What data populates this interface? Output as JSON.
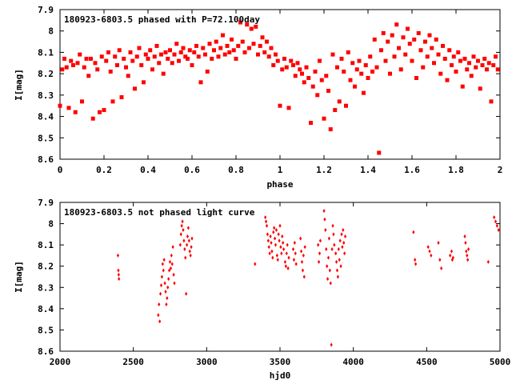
{
  "colors": {
    "points": "#ff0000",
    "frame": "#000000",
    "background": "#ffffff"
  },
  "chart_data": [
    {
      "type": "scatter",
      "title": "180923-6803.5 phased with P=72.100day",
      "xlabel": "phase",
      "ylabel": "I[mag]",
      "xlim": [
        0,
        2
      ],
      "ylim": [
        8.6,
        7.9
      ],
      "y_inverted": true,
      "grid": false,
      "legend": "none",
      "marker": "filled-square-star",
      "xticks": [
        0,
        0.2,
        0.4,
        0.6,
        0.8,
        1,
        1.2,
        1.4,
        1.6,
        1.8,
        2
      ],
      "xtick_labels": [
        "0",
        "0.2",
        "0.4",
        "0.6",
        "0.8",
        "1",
        "1.2",
        "1.4",
        "1.6",
        "1.8",
        "2"
      ],
      "yticks": [
        7.9,
        8,
        8.1,
        8.2,
        8.3,
        8.4,
        8.5,
        8.6
      ],
      "ytick_labels": [
        "7.9",
        "8",
        "8.1",
        "8.2",
        "8.3",
        "8.4",
        "8.5",
        "8.6"
      ],
      "points": [
        [
          0.0,
          8.35
        ],
        [
          0.01,
          8.18
        ],
        [
          0.02,
          8.13
        ],
        [
          0.03,
          8.17
        ],
        [
          0.04,
          8.36
        ],
        [
          0.05,
          8.14
        ],
        [
          0.06,
          8.16
        ],
        [
          0.07,
          8.38
        ],
        [
          0.08,
          8.15
        ],
        [
          0.09,
          8.11
        ],
        [
          0.1,
          8.33
        ],
        [
          0.11,
          8.17
        ],
        [
          0.12,
          8.13
        ],
        [
          0.13,
          8.21
        ],
        [
          0.14,
          8.13
        ],
        [
          0.15,
          8.41
        ],
        [
          0.16,
          8.15
        ],
        [
          0.17,
          8.18
        ],
        [
          0.18,
          8.38
        ],
        [
          0.19,
          8.12
        ],
        [
          0.2,
          8.37
        ],
        [
          0.21,
          8.14
        ],
        [
          0.22,
          8.1
        ],
        [
          0.23,
          8.19
        ],
        [
          0.24,
          8.33
        ],
        [
          0.25,
          8.12
        ],
        [
          0.26,
          8.16
        ],
        [
          0.27,
          8.09
        ],
        [
          0.28,
          8.31
        ],
        [
          0.29,
          8.13
        ],
        [
          0.3,
          8.17
        ],
        [
          0.31,
          8.21
        ],
        [
          0.32,
          8.1
        ],
        [
          0.33,
          8.14
        ],
        [
          0.34,
          8.27
        ],
        [
          0.35,
          8.12
        ],
        [
          0.36,
          8.08
        ],
        [
          0.37,
          8.16
        ],
        [
          0.38,
          8.24
        ],
        [
          0.39,
          8.11
        ],
        [
          0.4,
          8.13
        ],
        [
          0.41,
          8.09
        ],
        [
          0.42,
          8.18
        ],
        [
          0.43,
          8.12
        ],
        [
          0.44,
          8.07
        ],
        [
          0.45,
          8.15
        ],
        [
          0.46,
          8.11
        ],
        [
          0.47,
          8.2
        ],
        [
          0.48,
          8.1
        ],
        [
          0.49,
          8.13
        ],
        [
          0.5,
          8.09
        ],
        [
          0.51,
          8.15
        ],
        [
          0.52,
          8.11
        ],
        [
          0.53,
          8.06
        ],
        [
          0.54,
          8.14
        ],
        [
          0.55,
          8.1
        ],
        [
          0.56,
          8.08
        ],
        [
          0.57,
          8.12
        ],
        [
          0.58,
          8.13
        ],
        [
          0.59,
          8.09
        ],
        [
          0.6,
          8.16
        ],
        [
          0.61,
          8.1
        ],
        [
          0.62,
          8.07
        ],
        [
          0.63,
          8.12
        ],
        [
          0.64,
          8.24
        ],
        [
          0.65,
          8.08
        ],
        [
          0.66,
          8.11
        ],
        [
          0.67,
          8.19
        ],
        [
          0.68,
          8.06
        ],
        [
          0.69,
          8.13
        ],
        [
          0.7,
          8.09
        ],
        [
          0.71,
          8.05
        ],
        [
          0.72,
          8.12
        ],
        [
          0.73,
          8.08
        ],
        [
          0.74,
          8.02
        ],
        [
          0.75,
          8.11
        ],
        [
          0.76,
          8.07
        ],
        [
          0.77,
          8.1
        ],
        [
          0.78,
          8.04
        ],
        [
          0.79,
          8.09
        ],
        [
          0.8,
          8.13
        ],
        [
          0.81,
          8.07
        ],
        [
          0.82,
          7.96
        ],
        [
          0.83,
          8.05
        ],
        [
          0.84,
          8.1
        ],
        [
          0.85,
          7.97
        ],
        [
          0.86,
          8.08
        ],
        [
          0.87,
          7.99
        ],
        [
          0.88,
          8.06
        ],
        [
          0.89,
          7.98
        ],
        [
          0.9,
          8.11
        ],
        [
          0.91,
          8.07
        ],
        [
          0.92,
          8.03
        ],
        [
          0.93,
          8.1
        ],
        [
          0.94,
          8.05
        ],
        [
          0.95,
          8.12
        ],
        [
          0.96,
          8.08
        ],
        [
          0.97,
          8.16
        ],
        [
          0.98,
          8.11
        ],
        [
          0.99,
          8.14
        ],
        [
          1.0,
          8.35
        ],
        [
          1.01,
          8.18
        ],
        [
          1.02,
          8.13
        ],
        [
          1.03,
          8.17
        ],
        [
          1.04,
          8.36
        ],
        [
          1.05,
          8.14
        ],
        [
          1.06,
          8.16
        ],
        [
          1.07,
          8.21
        ],
        [
          1.08,
          8.15
        ],
        [
          1.09,
          8.18
        ],
        [
          1.1,
          8.2
        ],
        [
          1.11,
          8.24
        ],
        [
          1.12,
          8.17
        ],
        [
          1.13,
          8.22
        ],
        [
          1.14,
          8.43
        ],
        [
          1.15,
          8.26
        ],
        [
          1.16,
          8.19
        ],
        [
          1.17,
          8.3
        ],
        [
          1.18,
          8.14
        ],
        [
          1.19,
          8.23
        ],
        [
          1.2,
          8.41
        ],
        [
          1.21,
          8.21
        ],
        [
          1.22,
          8.28
        ],
        [
          1.23,
          8.46
        ],
        [
          1.24,
          8.11
        ],
        [
          1.25,
          8.37
        ],
        [
          1.26,
          8.17
        ],
        [
          1.27,
          8.33
        ],
        [
          1.28,
          8.13
        ],
        [
          1.29,
          8.19
        ],
        [
          1.3,
          8.35
        ],
        [
          1.31,
          8.1
        ],
        [
          1.32,
          8.23
        ],
        [
          1.33,
          8.15
        ],
        [
          1.34,
          8.26
        ],
        [
          1.35,
          8.18
        ],
        [
          1.36,
          8.14
        ],
        [
          1.37,
          8.2
        ],
        [
          1.38,
          8.29
        ],
        [
          1.39,
          8.16
        ],
        [
          1.4,
          8.22
        ],
        [
          1.41,
          8.12
        ],
        [
          1.42,
          8.19
        ],
        [
          1.43,
          8.04
        ],
        [
          1.44,
          8.17
        ],
        [
          1.45,
          8.57
        ],
        [
          1.46,
          8.09
        ],
        [
          1.47,
          8.01
        ],
        [
          1.48,
          8.14
        ],
        [
          1.49,
          8.05
        ],
        [
          1.5,
          8.2
        ],
        [
          1.51,
          8.02
        ],
        [
          1.52,
          8.12
        ],
        [
          1.53,
          7.97
        ],
        [
          1.54,
          8.08
        ],
        [
          1.55,
          8.18
        ],
        [
          1.56,
          8.03
        ],
        [
          1.57,
          8.11
        ],
        [
          1.58,
          7.99
        ],
        [
          1.59,
          8.06
        ],
        [
          1.6,
          8.14
        ],
        [
          1.61,
          8.04
        ],
        [
          1.62,
          8.22
        ],
        [
          1.63,
          8.01
        ],
        [
          1.64,
          8.09
        ],
        [
          1.65,
          8.17
        ],
        [
          1.66,
          8.05
        ],
        [
          1.67,
          8.12
        ],
        [
          1.68,
          8.02
        ],
        [
          1.69,
          8.08
        ],
        [
          1.7,
          8.15
        ],
        [
          1.71,
          8.04
        ],
        [
          1.72,
          8.11
        ],
        [
          1.73,
          8.2
        ],
        [
          1.74,
          8.07
        ],
        [
          1.75,
          8.13
        ],
        [
          1.76,
          8.23
        ],
        [
          1.77,
          8.09
        ],
        [
          1.78,
          8.16
        ],
        [
          1.79,
          8.12
        ],
        [
          1.8,
          8.19
        ],
        [
          1.81,
          8.1
        ],
        [
          1.82,
          8.14
        ],
        [
          1.83,
          8.26
        ],
        [
          1.84,
          8.13
        ],
        [
          1.85,
          8.18
        ],
        [
          1.86,
          8.15
        ],
        [
          1.87,
          8.21
        ],
        [
          1.88,
          8.12
        ],
        [
          1.89,
          8.17
        ],
        [
          1.9,
          8.14
        ],
        [
          1.91,
          8.27
        ],
        [
          1.92,
          8.16
        ],
        [
          1.93,
          8.13
        ],
        [
          1.94,
          8.18
        ],
        [
          1.95,
          8.15
        ],
        [
          1.96,
          8.33
        ],
        [
          1.97,
          8.16
        ],
        [
          1.98,
          8.12
        ],
        [
          1.99,
          8.18
        ]
      ]
    },
    {
      "type": "scatter",
      "title": "180923-6803.5 not phased light curve",
      "xlabel": "hjd0",
      "ylabel": "I[mag]",
      "xlim": [
        2000,
        5000
      ],
      "ylim": [
        8.6,
        7.9
      ],
      "y_inverted": true,
      "grid": false,
      "legend": "none",
      "marker": "small-diamond",
      "xticks": [
        2000,
        2500,
        3000,
        3500,
        4000,
        4500,
        5000
      ],
      "xtick_labels": [
        "2000",
        "2500",
        "3000",
        "3500",
        "4000",
        "4500",
        "5000"
      ],
      "yticks": [
        7.9,
        8,
        8.1,
        8.2,
        8.3,
        8.4,
        8.5,
        8.6
      ],
      "ytick_labels": [
        "7.9",
        "8",
        "8.1",
        "8.2",
        "8.3",
        "8.4",
        "8.5",
        "8.6"
      ],
      "points": [
        [
          2395,
          8.15
        ],
        [
          2398,
          8.22
        ],
        [
          2400,
          8.24
        ],
        [
          2402,
          8.26
        ],
        [
          2670,
          8.43
        ],
        [
          2675,
          8.38
        ],
        [
          2680,
          8.46
        ],
        [
          2685,
          8.33
        ],
        [
          2690,
          8.29
        ],
        [
          2695,
          8.25
        ],
        [
          2700,
          8.19
        ],
        [
          2705,
          8.22
        ],
        [
          2710,
          8.17
        ],
        [
          2715,
          8.28
        ],
        [
          2720,
          8.32
        ],
        [
          2725,
          8.38
        ],
        [
          2730,
          8.35
        ],
        [
          2735,
          8.3
        ],
        [
          2740,
          8.26
        ],
        [
          2745,
          8.22
        ],
        [
          2750,
          8.18
        ],
        [
          2755,
          8.21
        ],
        [
          2760,
          8.15
        ],
        [
          2765,
          8.19
        ],
        [
          2770,
          8.11
        ],
        [
          2775,
          8.24
        ],
        [
          2780,
          8.28
        ],
        [
          2820,
          8.1
        ],
        [
          2825,
          8.05
        ],
        [
          2830,
          8.01
        ],
        [
          2835,
          7.99
        ],
        [
          2840,
          8.03
        ],
        [
          2845,
          8.08
        ],
        [
          2850,
          8.12
        ],
        [
          2855,
          8.16
        ],
        [
          2860,
          8.33
        ],
        [
          2865,
          8.1
        ],
        [
          2870,
          8.06
        ],
        [
          2875,
          8.02
        ],
        [
          2880,
          8.08
        ],
        [
          2885,
          8.13
        ],
        [
          2890,
          8.15
        ],
        [
          2895,
          8.11
        ],
        [
          2900,
          8.07
        ],
        [
          3330,
          8.19
        ],
        [
          3400,
          7.97
        ],
        [
          3405,
          7.99
        ],
        [
          3410,
          8.01
        ],
        [
          3415,
          8.05
        ],
        [
          3420,
          8.08
        ],
        [
          3425,
          8.11
        ],
        [
          3430,
          8.14
        ],
        [
          3435,
          8.06
        ],
        [
          3440,
          8.09
        ],
        [
          3445,
          8.13
        ],
        [
          3450,
          8.16
        ],
        [
          3455,
          8.04
        ],
        [
          3460,
          8.02
        ],
        [
          3465,
          8.07
        ],
        [
          3470,
          8.1
        ],
        [
          3475,
          8.03
        ],
        [
          3480,
          8.15
        ],
        [
          3485,
          8.17
        ],
        [
          3490,
          8.05
        ],
        [
          3495,
          8.08
        ],
        [
          3500,
          8.01
        ],
        [
          3505,
          8.11
        ],
        [
          3510,
          8.14
        ],
        [
          3515,
          8.06
        ],
        [
          3520,
          8.09
        ],
        [
          3525,
          8.12
        ],
        [
          3535,
          8.18
        ],
        [
          3540,
          8.2
        ],
        [
          3545,
          8.14
        ],
        [
          3550,
          8.1
        ],
        [
          3555,
          8.21
        ],
        [
          3560,
          8.16
        ],
        [
          3590,
          8.12
        ],
        [
          3595,
          8.17
        ],
        [
          3600,
          8.09
        ],
        [
          3605,
          8.14
        ],
        [
          3610,
          8.19
        ],
        [
          3640,
          8.07
        ],
        [
          3645,
          8.13
        ],
        [
          3650,
          8.18
        ],
        [
          3655,
          8.22
        ],
        [
          3660,
          8.15
        ],
        [
          3665,
          8.25
        ],
        [
          3670,
          8.11
        ],
        [
          3760,
          8.1
        ],
        [
          3765,
          8.18
        ],
        [
          3770,
          8.14
        ],
        [
          3775,
          8.08
        ],
        [
          3800,
          7.94
        ],
        [
          3805,
          7.98
        ],
        [
          3810,
          8.03
        ],
        [
          3815,
          8.12
        ],
        [
          3820,
          8.2
        ],
        [
          3825,
          8.26
        ],
        [
          3830,
          8.16
        ],
        [
          3835,
          8.07
        ],
        [
          3840,
          8.22
        ],
        [
          3845,
          8.28
        ],
        [
          3850,
          8.57
        ],
        [
          3855,
          8.12
        ],
        [
          3860,
          8.01
        ],
        [
          3865,
          8.05
        ],
        [
          3870,
          8.1
        ],
        [
          3880,
          8.14
        ],
        [
          3885,
          8.18
        ],
        [
          3890,
          8.22
        ],
        [
          3895,
          8.25
        ],
        [
          3900,
          8.12
        ],
        [
          3905,
          8.17
        ],
        [
          3910,
          8.08
        ],
        [
          3915,
          8.2
        ],
        [
          3920,
          8.05
        ],
        [
          3925,
          8.11
        ],
        [
          3930,
          8.03
        ],
        [
          3935,
          8.09
        ],
        [
          3940,
          8.14
        ],
        [
          3945,
          8.06
        ],
        [
          4410,
          8.04
        ],
        [
          4420,
          8.17
        ],
        [
          4425,
          8.19
        ],
        [
          4510,
          8.11
        ],
        [
          4520,
          8.13
        ],
        [
          4530,
          8.15
        ],
        [
          4580,
          8.09
        ],
        [
          4590,
          8.17
        ],
        [
          4600,
          8.21
        ],
        [
          4660,
          8.15
        ],
        [
          4670,
          8.13
        ],
        [
          4675,
          8.17
        ],
        [
          4680,
          8.16
        ],
        [
          4760,
          8.06
        ],
        [
          4765,
          8.09
        ],
        [
          4770,
          8.13
        ],
        [
          4775,
          8.15
        ],
        [
          4780,
          8.17
        ],
        [
          4785,
          8.12
        ],
        [
          4920,
          8.18
        ],
        [
          4960,
          7.97
        ],
        [
          4970,
          7.99
        ],
        [
          4980,
          8.01
        ],
        [
          4990,
          8.03
        ]
      ]
    }
  ]
}
